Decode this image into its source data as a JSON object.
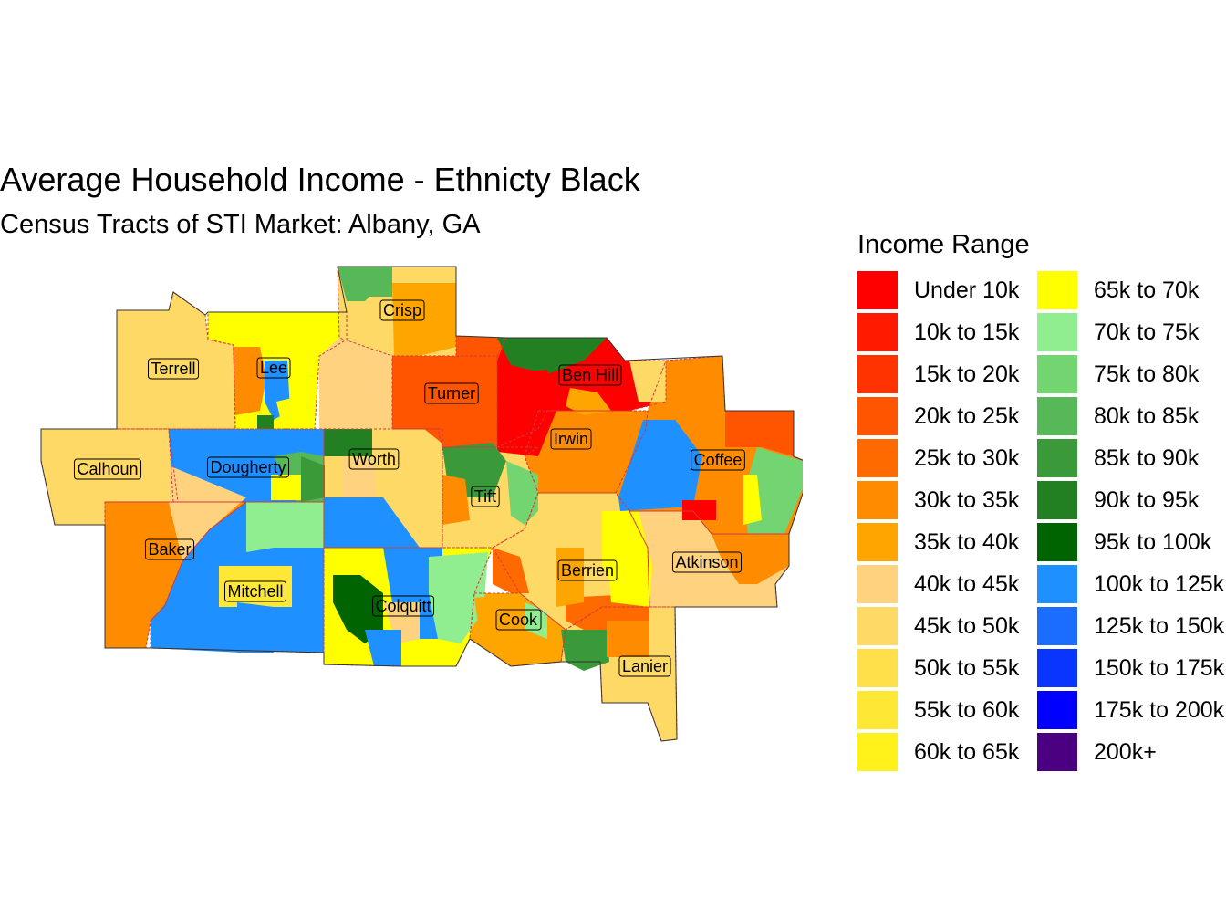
{
  "title": "Average Household Income - Ethnicty Black",
  "subtitle": "Census Tracts of STI Market: Albany, GA",
  "legend": {
    "title": "Income Range",
    "items": [
      {
        "label": "Under 10k",
        "color": "#ff0000"
      },
      {
        "label": "10k to 15k",
        "color": "#ff1a00"
      },
      {
        "label": "15k to 20k",
        "color": "#ff3300"
      },
      {
        "label": "20k to 25k",
        "color": "#ff5500"
      },
      {
        "label": "25k to 30k",
        "color": "#ff6a00"
      },
      {
        "label": "30k to 35k",
        "color": "#ff8c00"
      },
      {
        "label": "35k to 40k",
        "color": "#ffa500"
      },
      {
        "label": "40k to 45k",
        "color": "#ffd280"
      },
      {
        "label": "45k to 50k",
        "color": "#ffd966"
      },
      {
        "label": "50k to 55k",
        "color": "#ffe04a"
      },
      {
        "label": "55k to 60k",
        "color": "#ffe835"
      },
      {
        "label": "60k to 65k",
        "color": "#fff21a"
      },
      {
        "label": "65k to 70k",
        "color": "#ffff00"
      },
      {
        "label": "70k to 75k",
        "color": "#90ee90"
      },
      {
        "label": "75k to 80k",
        "color": "#72d572"
      },
      {
        "label": "80k to 85k",
        "color": "#57b857"
      },
      {
        "label": "85k to 90k",
        "color": "#3a9a3a"
      },
      {
        "label": "90k to 95k",
        "color": "#228022"
      },
      {
        "label": "95k to 100k",
        "color": "#006400"
      },
      {
        "label": "100k to 125k",
        "color": "#1e90ff"
      },
      {
        "label": "125k to 150k",
        "color": "#1a6dff"
      },
      {
        "label": "150k to 175k",
        "color": "#0a35ff"
      },
      {
        "label": "175k to 200k",
        "color": "#0000ff"
      },
      {
        "label": "200k+",
        "color": "#4b0082"
      }
    ]
  },
  "counties": [
    {
      "name": "Crisp",
      "color": "#ffd966"
    },
    {
      "name": "Terrell",
      "color": "#ffd966"
    },
    {
      "name": "Lee",
      "color": "#ffff00"
    },
    {
      "name": "Ben Hill",
      "color": "#ff0000"
    },
    {
      "name": "Turner",
      "color": "#ff5500"
    },
    {
      "name": "Irwin",
      "color": "#ff8c00"
    },
    {
      "name": "Calhoun",
      "color": "#ffd966"
    },
    {
      "name": "Dougherty",
      "color": "#1e90ff"
    },
    {
      "name": "Worth",
      "color": "#ffd966"
    },
    {
      "name": "Coffee",
      "color": "#ff8c00"
    },
    {
      "name": "Tift",
      "color": "#ffd966"
    },
    {
      "name": "Baker",
      "color": "#ff8c00"
    },
    {
      "name": "Berrien",
      "color": "#ffd966"
    },
    {
      "name": "Atkinson",
      "color": "#ffd280"
    },
    {
      "name": "Mitchell",
      "color": "#1e90ff"
    },
    {
      "name": "Colquitt",
      "color": "#ffff00"
    },
    {
      "name": "Cook",
      "color": "#ffa500"
    },
    {
      "name": "Lanier",
      "color": "#ffd966"
    }
  ]
}
